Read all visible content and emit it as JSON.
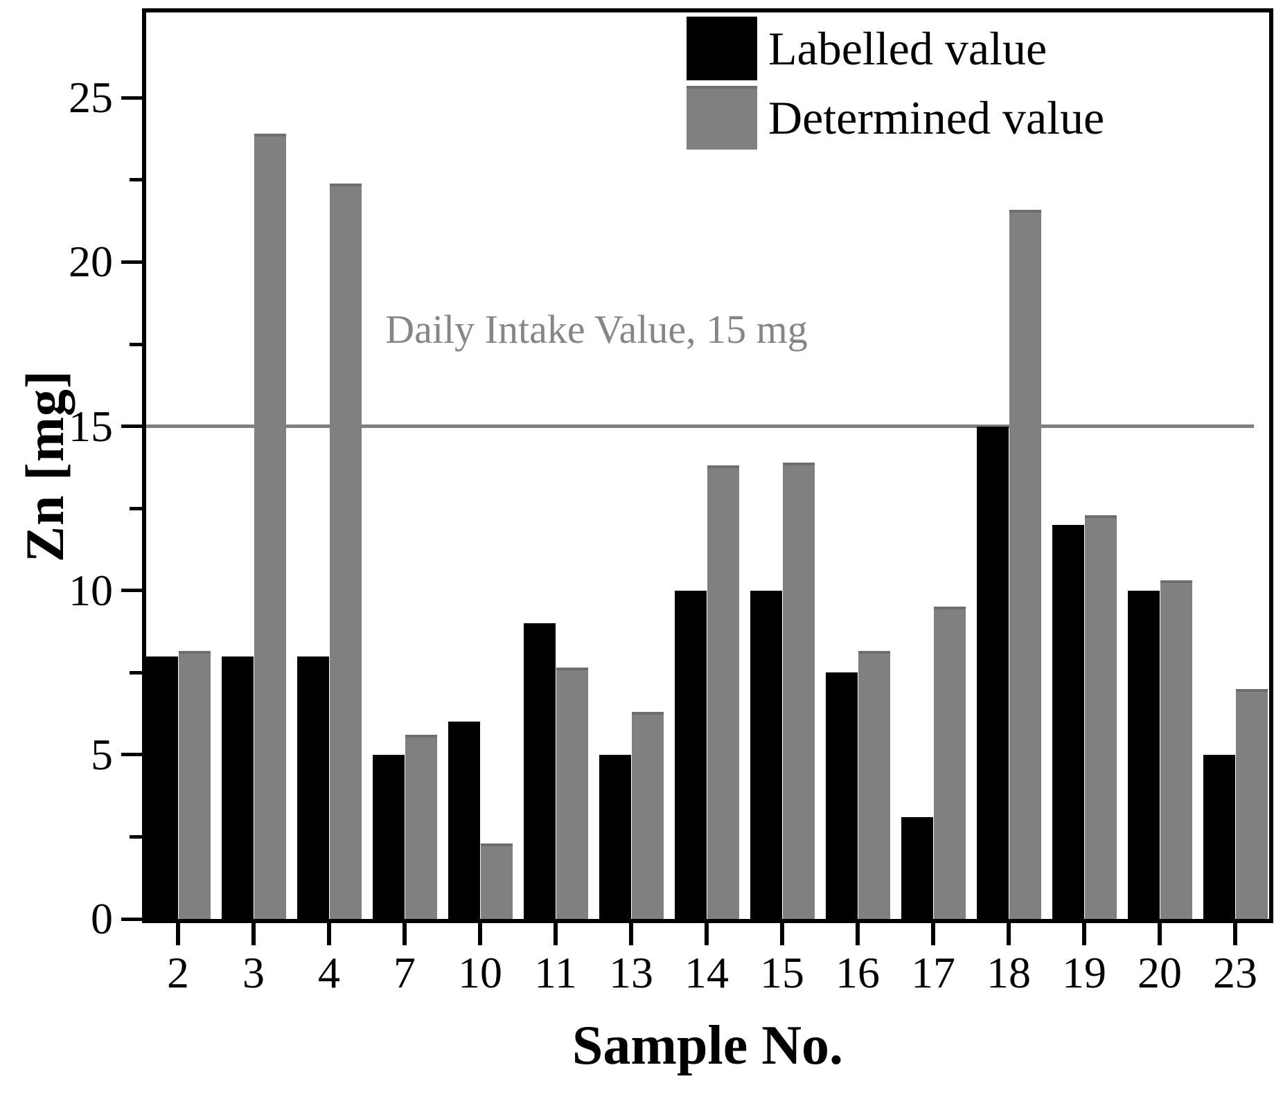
{
  "chart_data": {
    "type": "bar",
    "title": "",
    "xlabel": "Sample No.",
    "ylabel": "Zn [mg]",
    "categories": [
      "2",
      "3",
      "4",
      "7",
      "10",
      "11",
      "13",
      "14",
      "15",
      "16",
      "17",
      "18",
      "19",
      "20",
      "23"
    ],
    "series": [
      {
        "name": "Labelled value",
        "color": "#000000",
        "values": [
          8.0,
          8.0,
          8.0,
          5.0,
          6.0,
          9.0,
          5.0,
          10.0,
          10.0,
          7.5,
          3.1,
          15.0,
          12.0,
          10.0,
          5.0
        ]
      },
      {
        "name": "Determined value",
        "color": "#808080",
        "values": [
          8.15,
          23.9,
          22.4,
          5.6,
          2.3,
          7.65,
          6.3,
          13.8,
          13.9,
          8.15,
          9.5,
          21.6,
          12.3,
          10.3,
          7.0
        ]
      }
    ],
    "ylim": [
      0,
      27.6
    ],
    "yticks_major": [
      0,
      5,
      10,
      15,
      20,
      25
    ],
    "yticks_minor": [
      2.5,
      7.5,
      12.5,
      17.5,
      22.5
    ],
    "reference_line": {
      "value": 15,
      "label": "Daily Intake Value, 15 mg",
      "color": "#7f7f7f"
    },
    "legend_position": "top-right",
    "grid": false
  }
}
